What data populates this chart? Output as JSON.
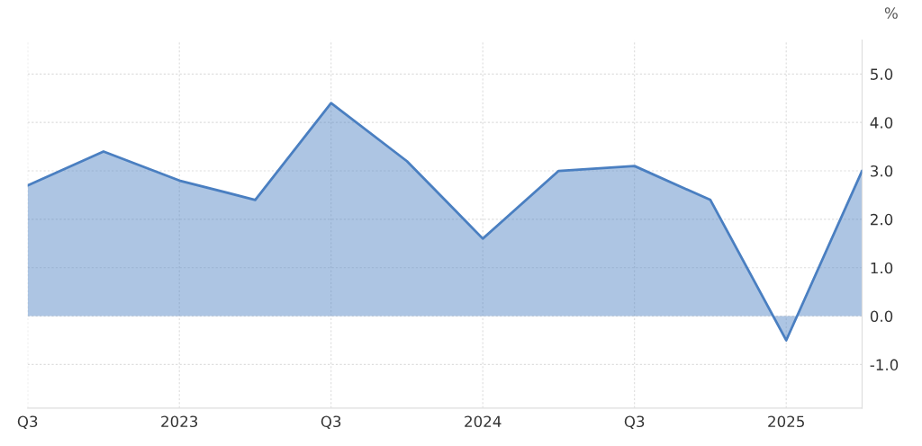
{
  "chart_data": {
    "type": "area",
    "ylabel": "%",
    "categories": [
      "Q3",
      null,
      "2023",
      null,
      "Q3",
      null,
      "2024",
      null,
      "Q3",
      null,
      "2025",
      null
    ],
    "series": [
      {
        "color": "#4a7fc1",
        "values": [
          2.7,
          3.4,
          2.8,
          2.4,
          4.4,
          3.2,
          1.6,
          3.0,
          3.1,
          2.4,
          -0.5,
          3.0
        ]
      }
    ],
    "ylim": [
      -1.9,
      5.7
    ],
    "yticks": [
      {
        "value": -1,
        "label": "-1.0"
      },
      {
        "value": 0,
        "label": "0.0"
      },
      {
        "value": 1,
        "label": "1.0"
      },
      {
        "value": 2,
        "label": "2.0"
      },
      {
        "value": 3,
        "label": "3.0"
      },
      {
        "value": 4,
        "label": "4.0"
      },
      {
        "value": 5,
        "label": "5.0"
      }
    ],
    "grid": true
  }
}
